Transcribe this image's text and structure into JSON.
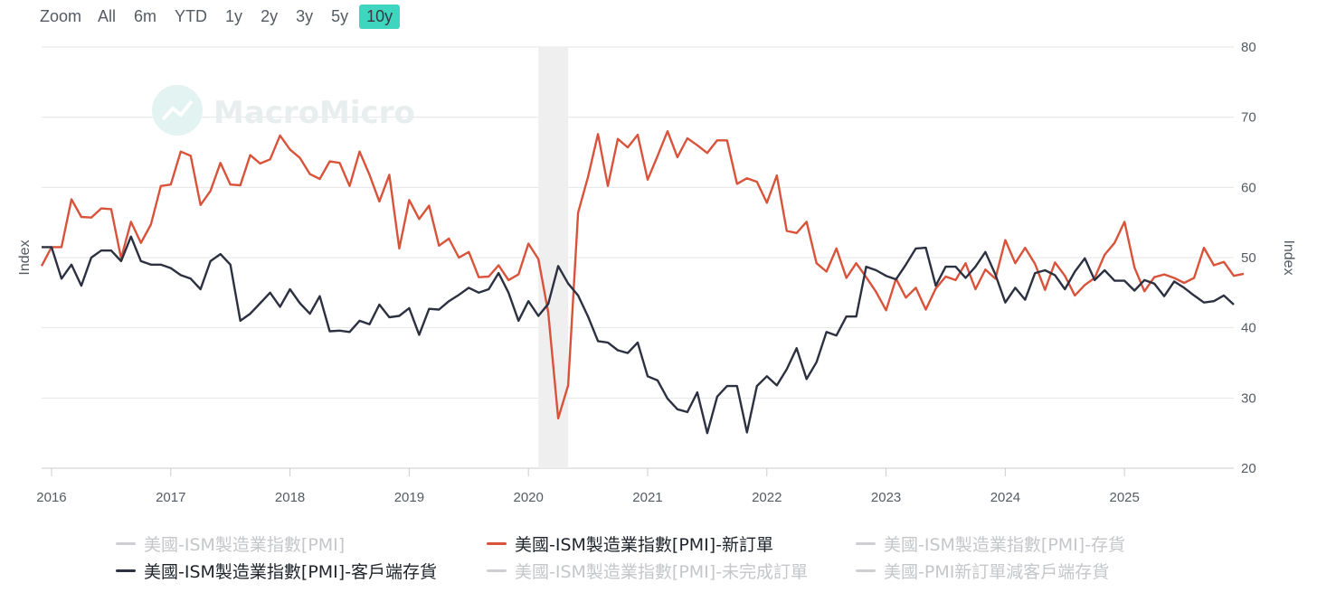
{
  "zoom": {
    "label": "Zoom",
    "buttons": [
      "All",
      "6m",
      "YTD",
      "1y",
      "2y",
      "3y",
      "5y",
      "10y"
    ],
    "active": "10y"
  },
  "watermark": "MacroMicro",
  "colors": {
    "new_orders": "#d9533b",
    "customer_inventory": "#2b3140",
    "inactive": "#cdcfd2",
    "active_text": "#1f242b",
    "inactive_text": "#c4c6c9",
    "grid": "#e4e6e8",
    "recession": "#efefef"
  },
  "legend": [
    {
      "label": "美國-ISM製造業指數[PMI]",
      "active": false
    },
    {
      "label": "美國-ISM製造業指數[PMI]-新訂單",
      "active": true,
      "series": "new_orders"
    },
    {
      "label": "美國-ISM製造業指數[PMI]-存貨",
      "active": false
    },
    {
      "label": "美國-ISM製造業指數[PMI]-客戶端存貨",
      "active": true,
      "series": "customer_inventory"
    },
    {
      "label": "美國-ISM製造業指數[PMI]-未完成訂單",
      "active": false
    },
    {
      "label": "美國-PMI新訂單減客戶端存貨",
      "active": false
    }
  ],
  "chart_data": {
    "type": "line",
    "xlabel": "",
    "ylabel_left": "Index",
    "ylabel_right": "Index",
    "ylim": [
      20,
      80
    ],
    "yticks": [
      20,
      30,
      40,
      50,
      60,
      70,
      80
    ],
    "xlim": [
      "2015-12",
      "2025-12"
    ],
    "xticks": [
      "2016",
      "2017",
      "2018",
      "2019",
      "2020",
      "2021",
      "2022",
      "2023",
      "2024",
      "2025"
    ],
    "grid": true,
    "legend_position": "bottom",
    "recession_band": [
      "2020-02",
      "2020-04"
    ],
    "start": "2015-12",
    "series": [
      {
        "name": "美國-ISM製造業指數[PMI]-新訂單",
        "key": "new_orders",
        "values": [
          48.8,
          51.5,
          51.5,
          58.3,
          55.8,
          55.7,
          57.0,
          56.9,
          49.9,
          55.1,
          52.1,
          54.7,
          60.2,
          60.4,
          65.1,
          64.5,
          57.5,
          59.5,
          63.5,
          60.4,
          60.3,
          64.6,
          63.4,
          64.0,
          67.4,
          65.4,
          64.2,
          61.9,
          61.2,
          63.7,
          63.5,
          60.2,
          65.1,
          61.8,
          58.0,
          61.8,
          51.3,
          58.2,
          55.5,
          57.4,
          51.7,
          52.7,
          50.0,
          50.8,
          47.2,
          47.3,
          48.9,
          46.8,
          47.6,
          52.0,
          49.8,
          42.2,
          27.1,
          31.8,
          56.4,
          61.5,
          67.6,
          60.2,
          66.9,
          65.7,
          67.5,
          61.1,
          64.5,
          68.0,
          64.3,
          67.0,
          66.0,
          64.9,
          66.7,
          66.7,
          60.5,
          61.3,
          60.8,
          57.8,
          61.7,
          53.8,
          53.5,
          55.1,
          49.2,
          48.0,
          51.3,
          47.1,
          49.2,
          47.2,
          45.1,
          42.5,
          47.0,
          44.3,
          45.7,
          42.6,
          45.6,
          47.3,
          46.8,
          49.2,
          45.5,
          48.3,
          47.0,
          52.5,
          49.2,
          51.4,
          49.1,
          45.4,
          49.3,
          47.4,
          44.6,
          46.1,
          47.1,
          50.4,
          52.1,
          55.1,
          48.6,
          45.2,
          47.2,
          47.6,
          47.1,
          46.4,
          47.1,
          51.4,
          48.9,
          49.4,
          47.4,
          47.7
        ]
      },
      {
        "name": "美國-ISM製造業指數[PMI]-客戶端存貨",
        "key": "customer_inventory",
        "values": [
          51.5,
          51.5,
          47.0,
          49.0,
          46.0,
          50.0,
          51.0,
          51.0,
          49.5,
          53.0,
          49.5,
          49.0,
          49.0,
          48.5,
          47.5,
          47.0,
          45.5,
          49.5,
          50.5,
          49.0,
          41.0,
          42.0,
          43.5,
          45.0,
          43.0,
          45.5,
          43.5,
          42.0,
          44.5,
          39.5,
          39.6,
          39.4,
          41.0,
          40.5,
          43.3,
          41.5,
          41.7,
          42.8,
          39.0,
          42.7,
          42.6,
          43.8,
          44.7,
          45.7,
          45.0,
          45.5,
          47.8,
          45.0,
          41.0,
          43.8,
          41.7,
          43.4,
          48.8,
          46.3,
          44.6,
          41.6,
          38.1,
          37.9,
          36.8,
          36.4,
          37.9,
          33.1,
          32.5,
          29.9,
          28.4,
          28.0,
          30.8,
          25.0,
          30.2,
          31.7,
          31.7,
          25.1,
          31.7,
          33.1,
          31.8,
          34.1,
          37.1,
          32.7,
          35.1,
          39.4,
          38.9,
          41.6,
          41.6,
          48.7,
          48.2,
          47.4,
          46.9,
          49.0,
          51.3,
          51.4,
          46.0,
          48.7,
          48.7,
          47.1,
          48.7,
          50.8,
          47.6,
          43.6,
          45.7,
          44.0,
          47.8,
          48.2,
          47.5,
          45.5,
          48.0,
          49.9,
          46.8,
          48.2,
          46.7,
          46.7,
          45.3,
          46.8,
          46.3,
          44.5,
          46.6,
          45.7,
          44.6,
          43.6,
          43.8,
          44.6,
          43.3
        ]
      }
    ]
  }
}
